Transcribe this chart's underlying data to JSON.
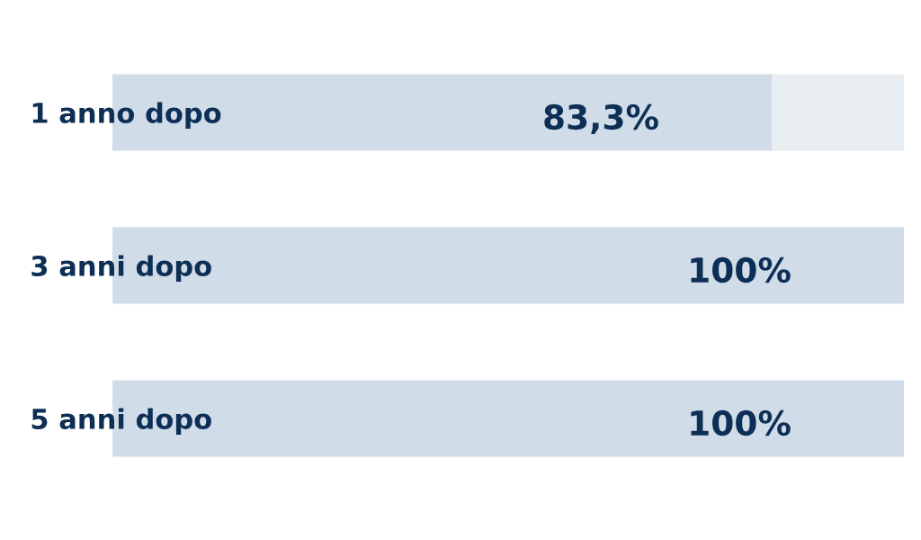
{
  "chart_data": {
    "type": "bar",
    "orientation": "horizontal",
    "stacked": true,
    "categories": [
      "1 anno dopo",
      "3 anni dopo",
      "5 anni dopo"
    ],
    "series": [
      {
        "color": "#d0dde9",
        "values": [
          83.3,
          100,
          100
        ],
        "value_labels": [
          "83,3%",
          "100%",
          "100%"
        ]
      },
      {
        "color": "#e8edf2",
        "values": [
          16.7,
          0,
          0
        ]
      }
    ],
    "tick_labels": "y"
  }
}
